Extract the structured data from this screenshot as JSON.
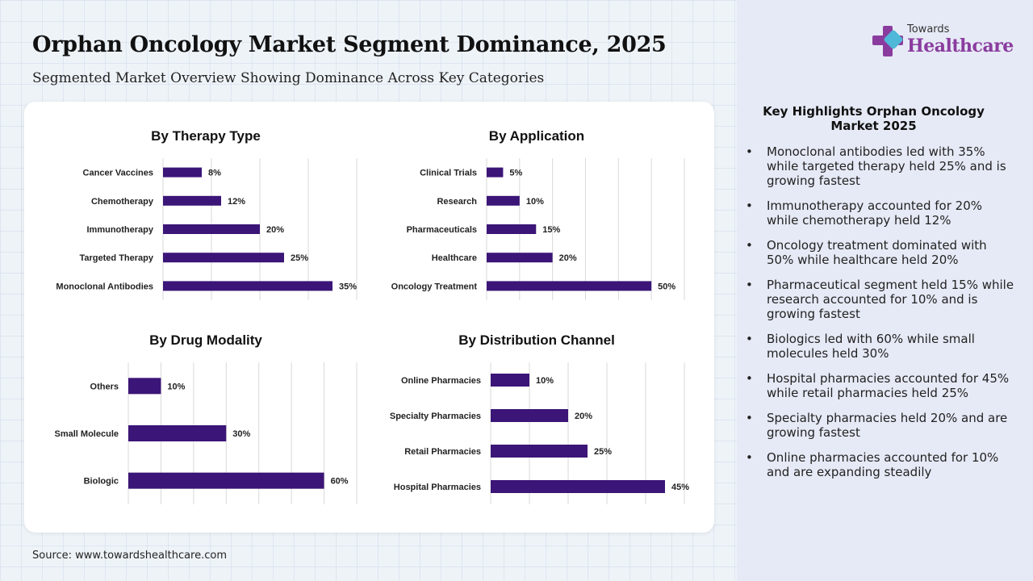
{
  "header": {
    "title": "Orphan Oncology Market Segment Dominance, 2025",
    "subtitle": "Segmented Market Overview Showing Dominance Across Key Categories"
  },
  "source": "Source: www.towardshealthcare.com",
  "logo": {
    "small": "Towards",
    "big": "Healthcare"
  },
  "highlights": {
    "title": "Key Highlights Orphan Oncology Market 2025",
    "items": [
      "Monoclonal antibodies led with 35% while targeted therapy held 25% and is growing fastest",
      "Immunotherapy accounted for 20% while chemotherapy held 12%",
      "Oncology treatment dominated with 50% while healthcare held 20%",
      "Pharmaceutical segment held 15% while research accounted for 10% and is growing fastest",
      "Biologics led with 60% while small molecules held 30%",
      "Hospital pharmacies accounted for 45% while retail pharmacies held 25%",
      "Specialty pharmacies held 20% and are growing fastest",
      "Online pharmacies accounted for 10% and are expanding steadily"
    ]
  },
  "colors": {
    "bar": "#3b1577",
    "brand": "#8a3c9e",
    "grid": "#d9d9d9"
  },
  "chart_data": [
    {
      "type": "bar",
      "orientation": "horizontal",
      "title": "By Therapy Type",
      "categories": [
        "Cancer Vaccines",
        "Chemotherapy",
        "Immunotherapy",
        "Targeted Therapy",
        "Monoclonal Antibodies"
      ],
      "values": [
        8,
        12,
        20,
        25,
        35
      ],
      "labels": [
        "8%",
        "12%",
        "20%",
        "25%",
        "35%"
      ],
      "xlim": [
        0,
        40
      ],
      "grid": true
    },
    {
      "type": "bar",
      "orientation": "horizontal",
      "title": "By Application",
      "categories": [
        "Clinical Trials",
        "Research",
        "Pharmaceuticals",
        "Healthcare",
        "Oncology Treatment"
      ],
      "values": [
        5,
        10,
        15,
        20,
        50
      ],
      "labels": [
        "5%",
        "10%",
        "15%",
        "20%",
        "50%"
      ],
      "xlim": [
        0,
        60
      ],
      "grid": true
    },
    {
      "type": "bar",
      "orientation": "horizontal",
      "title": "By Drug Modality",
      "categories": [
        "Others",
        "Small Molecule",
        "Biologic"
      ],
      "values": [
        10,
        30,
        60
      ],
      "labels": [
        "10%",
        "30%",
        "60%"
      ],
      "xlim": [
        0,
        70
      ],
      "grid": true
    },
    {
      "type": "bar",
      "orientation": "horizontal",
      "title": "By Distribution Channel",
      "categories": [
        "Online Pharmacies",
        "Specialty Pharmacies",
        "Retail Pharmacies",
        "Hospital Pharmacies"
      ],
      "values": [
        10,
        20,
        25,
        45
      ],
      "labels": [
        "10%",
        "20%",
        "25%",
        "45%"
      ],
      "xlim": [
        0,
        50
      ],
      "grid": true
    }
  ]
}
